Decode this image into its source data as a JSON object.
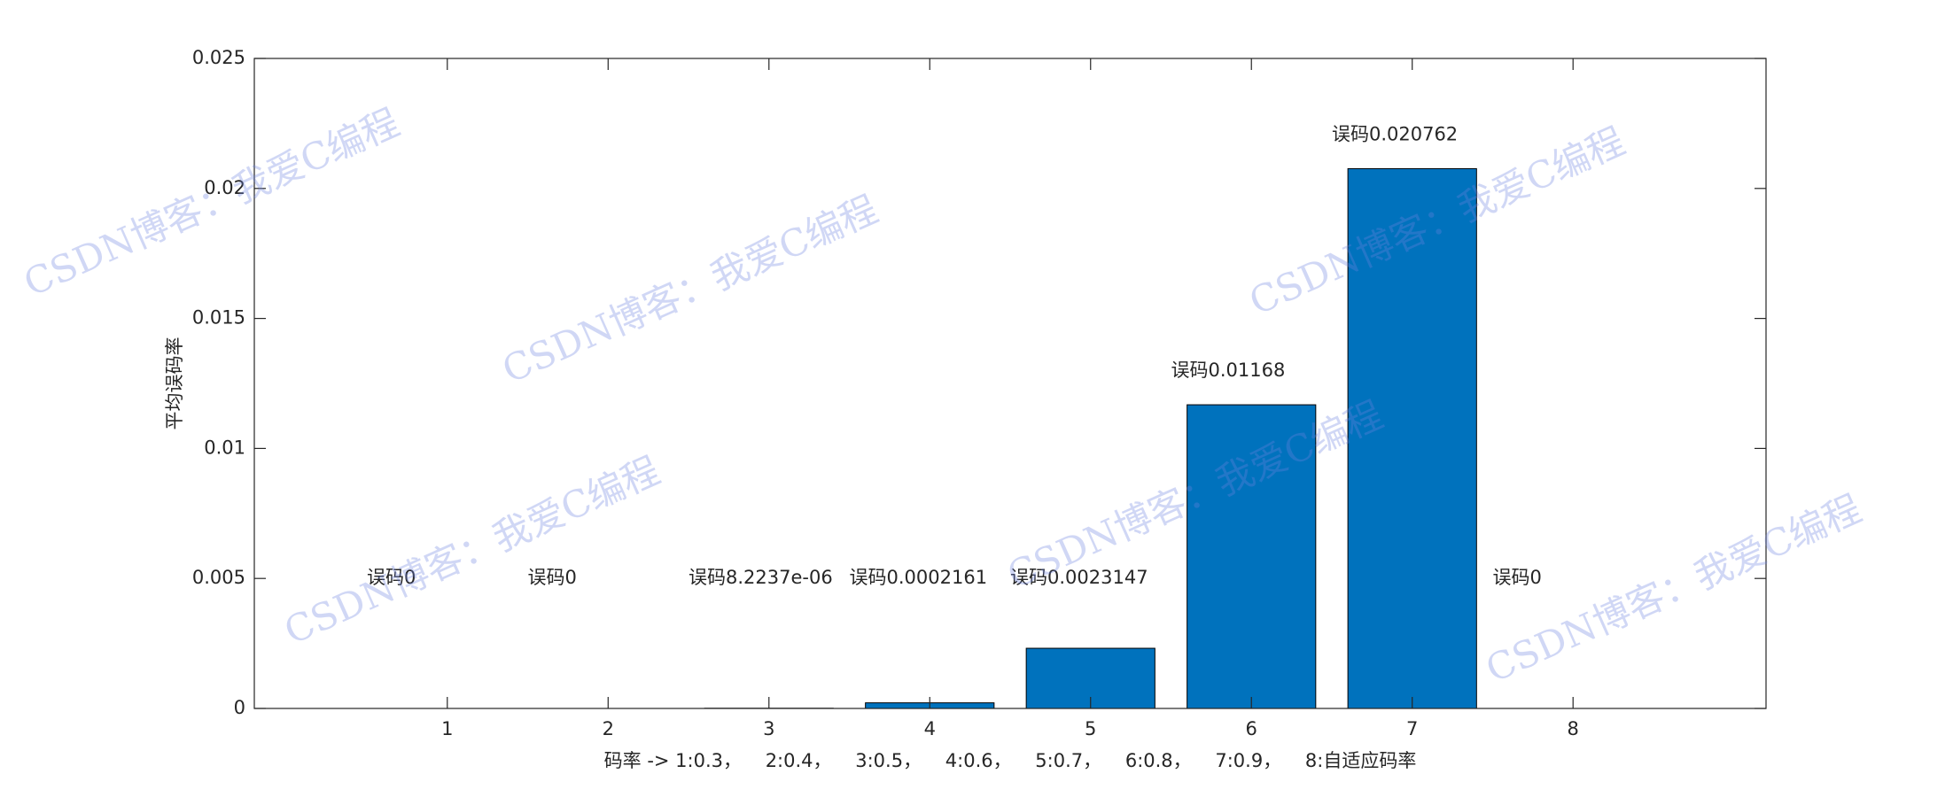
{
  "chart_data": {
    "type": "bar",
    "x": [
      1,
      2,
      3,
      4,
      5,
      6,
      7,
      8
    ],
    "values": [
      0,
      0,
      8.2237e-06,
      0.0002161,
      0.0023147,
      0.01168,
      0.020762,
      0
    ],
    "value_labels": [
      "误码0",
      "误码0",
      "误码8.2237e-06",
      "误码0.0002161",
      "误码0.0023147",
      "误码0.01168",
      "误码0.020762",
      "误码0"
    ],
    "color": "#0072bd",
    "xlim": [
      -0.2,
      9.2
    ],
    "xticks": [
      1,
      2,
      3,
      4,
      5,
      6,
      7,
      8
    ],
    "ylim": [
      0,
      0.025
    ],
    "yticks": [
      0,
      0.005,
      0.01,
      0.015,
      0.02,
      0.025
    ],
    "xlabel": "码率 -> 1:0.3，    2:0.4，    3:0.5，    4:0.6，    5:0.7，    6:0.8，    7:0.9，    8:自适应码率",
    "ylabel": "平均误码率",
    "watermark": "CSDN博客：我爱C编程",
    "grid": false
  }
}
